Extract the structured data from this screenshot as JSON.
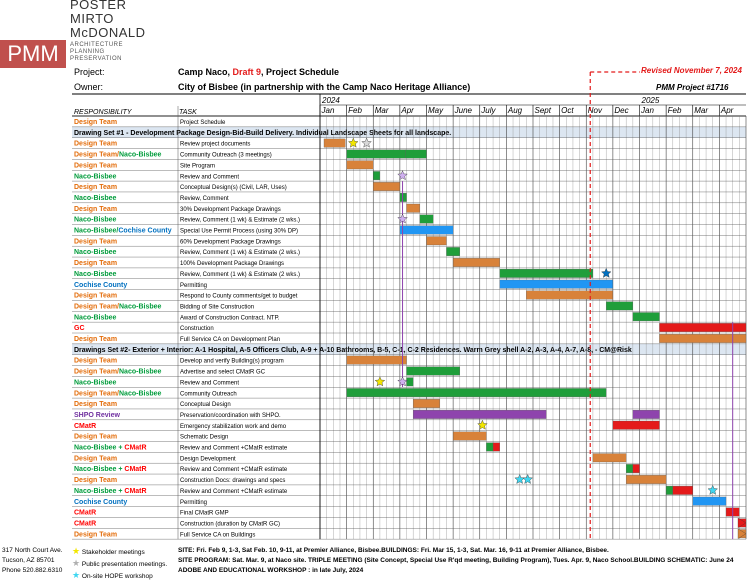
{
  "firm": {
    "logo": "PMM",
    "name_lines": [
      "POSTER",
      "MIRTO",
      "McDONALD"
    ],
    "tagline": "ARCHITECTURE PLANNING PRESERVATION"
  },
  "header": {
    "project_label": "Project:",
    "project_title_a": "Camp Naco, ",
    "project_title_draft": "Draft 9",
    "project_title_b": ", Project Schedule",
    "owner_label": "Owner:",
    "owner_value": "City of Bisbee (in partnership with the Camp Naco Heritage Alliance)",
    "revised": "Revised November 7, 2024",
    "project_number": "PMM Project #1716"
  },
  "columns": {
    "responsibility": "RESPONSIBILITY",
    "task": "TASK"
  },
  "years": [
    "2024",
    "2025"
  ],
  "months": [
    "Jan",
    "Feb",
    "Mar",
    "Apr",
    "May",
    "June",
    "July",
    "Aug",
    "Sept",
    "Oct",
    "Nov",
    "Dec",
    "Jan",
    "Feb",
    "Mar",
    "Apr"
  ],
  "colors": {
    "design_team": "#e36c09",
    "naco_bisbee": "#009c3b",
    "cochise": "#0070c0",
    "gc": "#ff0000",
    "cmatr": "#ff0000",
    "shpo": "#7030a0",
    "bar_orange": "#d8823a",
    "bar_green": "#1f9e3a",
    "bar_blue": "#2196f3",
    "bar_red": "#e41a1a",
    "bar_purple": "#8e44ad"
  },
  "chart_data": {
    "type": "gantt",
    "timeline": "Jan 2024 - Apr 2025, weekly grid",
    "sections": [
      {
        "title": "",
        "rows": [
          {
            "resp": [
              {
                "t": "Design Team",
                "c": "design_team"
              }
            ],
            "task": "Project Schedule",
            "bars": []
          }
        ]
      },
      {
        "title": "Drawing Set #1 - Development Package Design-Bid-Build Delivery. Individual Landscape Sheets for all landscape.",
        "rows": [
          {
            "resp": [
              {
                "t": "Design Team",
                "c": "design_team"
              }
            ],
            "task": "Review project documents",
            "bars": [
              {
                "s": 0.15,
                "e": 0.95,
                "c": "bar_orange"
              }
            ]
          },
          {
            "resp": [
              {
                "t": "Design Team/",
                "c": "design_team"
              },
              {
                "t": "Naco-Bisbee",
                "c": "naco_bisbee"
              }
            ],
            "task": "Community Outreach (3 meetings)",
            "bars": [
              {
                "s": 1.0,
                "e": 3.2,
                "c": "bar_green"
              },
              {
                "s": 3.2,
                "e": 4.0,
                "c": "bar_green"
              }
            ]
          },
          {
            "resp": [
              {
                "t": "Design Team",
                "c": "design_team"
              }
            ],
            "task": "Site Program",
            "bars": [
              {
                "s": 1.0,
                "e": 2.0,
                "c": "bar_orange"
              }
            ]
          },
          {
            "resp": [
              {
                "t": "Naco-Bisbee",
                "c": "naco_bisbee"
              }
            ],
            "task": "Review and Comment",
            "bars": [
              {
                "s": 2.0,
                "e": 2.25,
                "c": "bar_green"
              }
            ]
          },
          {
            "resp": [
              {
                "t": "Design Team",
                "c": "design_team"
              }
            ],
            "task": "Conceptual Design(s) (Civil, LAR, Uses)",
            "bars": [
              {
                "s": 2.0,
                "e": 3.0,
                "c": "bar_orange"
              }
            ]
          },
          {
            "resp": [
              {
                "t": "Naco-Bisbee",
                "c": "naco_bisbee"
              }
            ],
            "task": "Review, Comment",
            "bars": [
              {
                "s": 3.0,
                "e": 3.25,
                "c": "bar_green"
              }
            ]
          },
          {
            "resp": [
              {
                "t": "Design Team",
                "c": "design_team"
              }
            ],
            "task": "30% Development Package Drawings",
            "bars": [
              {
                "s": 3.25,
                "e": 3.75,
                "c": "bar_orange"
              }
            ]
          },
          {
            "resp": [
              {
                "t": "Naco-Bisbee",
                "c": "naco_bisbee"
              }
            ],
            "task": "Review, Comment (1 wk) & Estimate (2 wks.)",
            "bars": [
              {
                "s": 3.75,
                "e": 4.25,
                "c": "bar_green"
              }
            ]
          },
          {
            "resp": [
              {
                "t": "Naco-Bisbee/",
                "c": "naco_bisbee"
              },
              {
                "t": "Cochise County",
                "c": "cochise"
              }
            ],
            "task": "Special Use Permit Process (using 30% DP)",
            "bars": [
              {
                "s": 3.0,
                "e": 5.0,
                "c": "bar_blue"
              }
            ]
          },
          {
            "resp": [
              {
                "t": "Design Team",
                "c": "design_team"
              }
            ],
            "task": "60% Development Package Drawings",
            "bars": [
              {
                "s": 4.0,
                "e": 4.75,
                "c": "bar_orange"
              }
            ]
          },
          {
            "resp": [
              {
                "t": "Naco-Bisbee",
                "c": "naco_bisbee"
              }
            ],
            "task": "Review, Comment (1 wk) & Estimate (2 wks.)",
            "bars": [
              {
                "s": 4.75,
                "e": 5.25,
                "c": "bar_green"
              }
            ]
          },
          {
            "resp": [
              {
                "t": "Design Team",
                "c": "design_team"
              }
            ],
            "task": "100% Development Package Drawings",
            "bars": [
              {
                "s": 5.0,
                "e": 6.75,
                "c": "bar_orange"
              }
            ]
          },
          {
            "resp": [
              {
                "t": "Naco-Bisbee",
                "c": "naco_bisbee"
              }
            ],
            "task": "Review, Comment (1 wk) & Estimate (2 wks.)",
            "bars": [
              {
                "s": 6.75,
                "e": 10.25,
                "c": "bar_green"
              }
            ]
          },
          {
            "resp": [
              {
                "t": "Cochise County",
                "c": "cochise"
              }
            ],
            "task": "Permitting",
            "bars": [
              {
                "s": 6.75,
                "e": 11.0,
                "c": "bar_blue"
              }
            ]
          },
          {
            "resp": [
              {
                "t": "Design Team",
                "c": "design_team"
              }
            ],
            "task": "Respond to County comments/get to budget",
            "bars": [
              {
                "s": 7.75,
                "e": 11.0,
                "c": "bar_orange"
              }
            ]
          },
          {
            "resp": [
              {
                "t": "Design Team/",
                "c": "design_team"
              },
              {
                "t": "Naco-Bisbee",
                "c": "naco_bisbee"
              }
            ],
            "task": "Bidding of Site Construction",
            "bars": [
              {
                "s": 10.75,
                "e": 11.75,
                "c": "bar_green"
              }
            ]
          },
          {
            "resp": [
              {
                "t": "Naco-Bisbee",
                "c": "naco_bisbee"
              }
            ],
            "task": "Award of Construction Contract. NTP.",
            "bars": [
              {
                "s": 11.75,
                "e": 12.75,
                "c": "bar_green"
              }
            ]
          },
          {
            "resp": [
              {
                "t": "GC",
                "c": "gc"
              }
            ],
            "task": "Construction",
            "bars": [
              {
                "s": 12.75,
                "e": 16.0,
                "c": "bar_red"
              }
            ]
          },
          {
            "resp": [
              {
                "t": "Design Team",
                "c": "design_team"
              }
            ],
            "task": "Full Service CA on Development Plan",
            "bars": [
              {
                "s": 12.75,
                "e": 16.0,
                "c": "bar_orange"
              }
            ]
          }
        ]
      },
      {
        "title": "Drawings Set #2- Exterior + Interior: A-1 Hospital, A-5 Officers Club, A-9 + A-10 Bathrooms, B-5, C-1, C-2 Residences. Warm Grey shell A-2, A-3, A-4, A-7, A-8, - CM@Risk",
        "rows": [
          {
            "resp": [
              {
                "t": "Design Team",
                "c": "design_team"
              }
            ],
            "task": "Develop and verify Building(s) program",
            "bars": [
              {
                "s": 1.0,
                "e": 3.25,
                "c": "bar_orange"
              }
            ]
          },
          {
            "resp": [
              {
                "t": "Design Team/",
                "c": "design_team"
              },
              {
                "t": "Naco-Bisbee",
                "c": "naco_bisbee"
              }
            ],
            "task": "Advertise and select CMatR GC",
            "bars": [
              {
                "s": 3.25,
                "e": 5.25,
                "c": "bar_green"
              }
            ]
          },
          {
            "resp": [
              {
                "t": "Naco-Bisbee",
                "c": "naco_bisbee"
              }
            ],
            "task": "Review and Comment",
            "bars": [
              {
                "s": 3.25,
                "e": 3.5,
                "c": "bar_green"
              }
            ]
          },
          {
            "resp": [
              {
                "t": "Design Team/",
                "c": "design_team"
              },
              {
                "t": "Naco-Bisbee",
                "c": "naco_bisbee"
              }
            ],
            "task": "Community Outreach",
            "bars": [
              {
                "s": 1.0,
                "e": 10.75,
                "c": "bar_green"
              }
            ]
          },
          {
            "resp": [
              {
                "t": "Design Team",
                "c": "design_team"
              }
            ],
            "task": "Conceptual Design",
            "bars": [
              {
                "s": 3.5,
                "e": 4.5,
                "c": "bar_orange"
              }
            ]
          },
          {
            "resp": [
              {
                "t": "SHPO Review",
                "c": "shpo"
              }
            ],
            "task": "Preservation/coordination with SHPO.",
            "bars": [
              {
                "s": 3.5,
                "e": 8.5,
                "c": "bar_purple"
              },
              {
                "s": 11.75,
                "e": 12.75,
                "c": "bar_purple"
              }
            ]
          },
          {
            "resp": [
              {
                "t": "CMatR",
                "c": "cmatr"
              }
            ],
            "task": "Emergency stabilization work and demo",
            "bars": [
              {
                "s": 11.0,
                "e": 12.75,
                "c": "bar_red"
              }
            ]
          },
          {
            "resp": [
              {
                "t": "Design Team",
                "c": "design_team"
              }
            ],
            "task": "Schematic Design",
            "bars": [
              {
                "s": 5.0,
                "e": 6.25,
                "c": "bar_orange"
              }
            ]
          },
          {
            "resp": [
              {
                "t": "Naco-Bisbee + ",
                "c": "naco_bisbee"
              },
              {
                "t": "CMatR",
                "c": "cmatr"
              }
            ],
            "task": "Review and Comment +CMatR estimate",
            "bars": [
              {
                "s": 6.25,
                "e": 6.5,
                "c": "bar_green"
              },
              {
                "s": 6.5,
                "e": 6.75,
                "c": "bar_red"
              }
            ]
          },
          {
            "resp": [
              {
                "t": "Design Team",
                "c": "design_team"
              }
            ],
            "task": "Design Development",
            "bars": [
              {
                "s": 10.25,
                "e": 11.5,
                "c": "bar_orange"
              }
            ]
          },
          {
            "resp": [
              {
                "t": "Naco-Bisbee + ",
                "c": "naco_bisbee"
              },
              {
                "t": "CMatR",
                "c": "cmatr"
              }
            ],
            "task": "Review and Comment +CMatR estimate",
            "bars": [
              {
                "s": 11.5,
                "e": 11.75,
                "c": "bar_green"
              },
              {
                "s": 11.75,
                "e": 12.0,
                "c": "bar_red"
              }
            ]
          },
          {
            "resp": [
              {
                "t": "Design Team",
                "c": "design_team"
              }
            ],
            "task": "Construction Docs: drawings and specs",
            "bars": [
              {
                "s": 11.5,
                "e": 13.0,
                "c": "bar_orange"
              }
            ]
          },
          {
            "resp": [
              {
                "t": "Naco-Bisbee + ",
                "c": "naco_bisbee"
              },
              {
                "t": "CMatR",
                "c": "cmatr"
              }
            ],
            "task": "Review and Comment +CMatR estimate",
            "bars": [
              {
                "s": 13.0,
                "e": 13.25,
                "c": "bar_green"
              },
              {
                "s": 13.25,
                "e": 14.0,
                "c": "bar_red"
              }
            ]
          },
          {
            "resp": [
              {
                "t": "Cochise County",
                "c": "cochise"
              }
            ],
            "task": "Permitting",
            "bars": [
              {
                "s": 14.0,
                "e": 15.25,
                "c": "bar_blue"
              }
            ]
          },
          {
            "resp": [
              {
                "t": "CMatR",
                "c": "cmatr"
              }
            ],
            "task": "Final CMatR GMP",
            "bars": [
              {
                "s": 15.25,
                "e": 15.75,
                "c": "bar_red"
              }
            ]
          },
          {
            "resp": [
              {
                "t": "CMatR",
                "c": "cmatr"
              }
            ],
            "task": "Construction (duration by CMatR GC)",
            "bars": [
              {
                "s": 15.75,
                "e": 16.0,
                "c": "bar_red"
              }
            ]
          },
          {
            "resp": [
              {
                "t": "Design Team",
                "c": "design_team"
              }
            ],
            "task": "Full Service CA on Buildings",
            "bars": [
              {
                "s": 15.75,
                "e": 16.0,
                "c": "bar_orange"
              }
            ]
          }
        ]
      }
    ],
    "markers": [
      {
        "row": 2,
        "m": 1.25,
        "c": "#f2e600"
      },
      {
        "row": 2,
        "m": 1.75,
        "c": "#d8d8d8"
      },
      {
        "row": 5,
        "m": 3.1,
        "c": "#d0b0f0"
      },
      {
        "row": 9,
        "m": 3.1,
        "c": "#d0b0f0"
      },
      {
        "row": 14,
        "m": 10.75,
        "c": "#0070c0"
      },
      {
        "row": 24,
        "m": 2.25,
        "c": "#f2e600"
      },
      {
        "row": 24,
        "m": 3.1,
        "c": "#d0b0f0"
      },
      {
        "row": 28,
        "m": 6.1,
        "c": "#f2e600"
      },
      {
        "row": 33,
        "m": 7.5,
        "c": "#3fd6f0"
      },
      {
        "row": 33,
        "m": 7.8,
        "c": "#3fd6f0"
      },
      {
        "row": 34,
        "m": 14.75,
        "c": "#3fd6f0"
      }
    ]
  },
  "footer": {
    "address": [
      "317 North Court Ave.",
      "Tucson, AZ 85701",
      "Phone 520.882.6310"
    ],
    "legend": [
      "Stakeholder meetings",
      "Public presentation meetings.",
      "On-site HOPE workshop"
    ],
    "notes": [
      "SITE: Fri. Feb 9, 1-3, Sat Feb. 10, 9-11, at Premier Alliance, Bisbee.BUILDINGS: Fri. Mar 15, 1-3, Sat. Mar. 16, 9-11 at Premier Alliance, Bisbee.",
      "SITE PROGRAM: Sat. Mar. 9, at Naco site. TRIPLE MEETING (Site Concept, Special Use R'qd meeting, Building Program), Tues. Apr. 9, Naco School.BUILDING SCHEMATIC: June 24",
      "ADOBE AND EDUCATIONAL WORKSHOP : in late July, 2024"
    ]
  }
}
